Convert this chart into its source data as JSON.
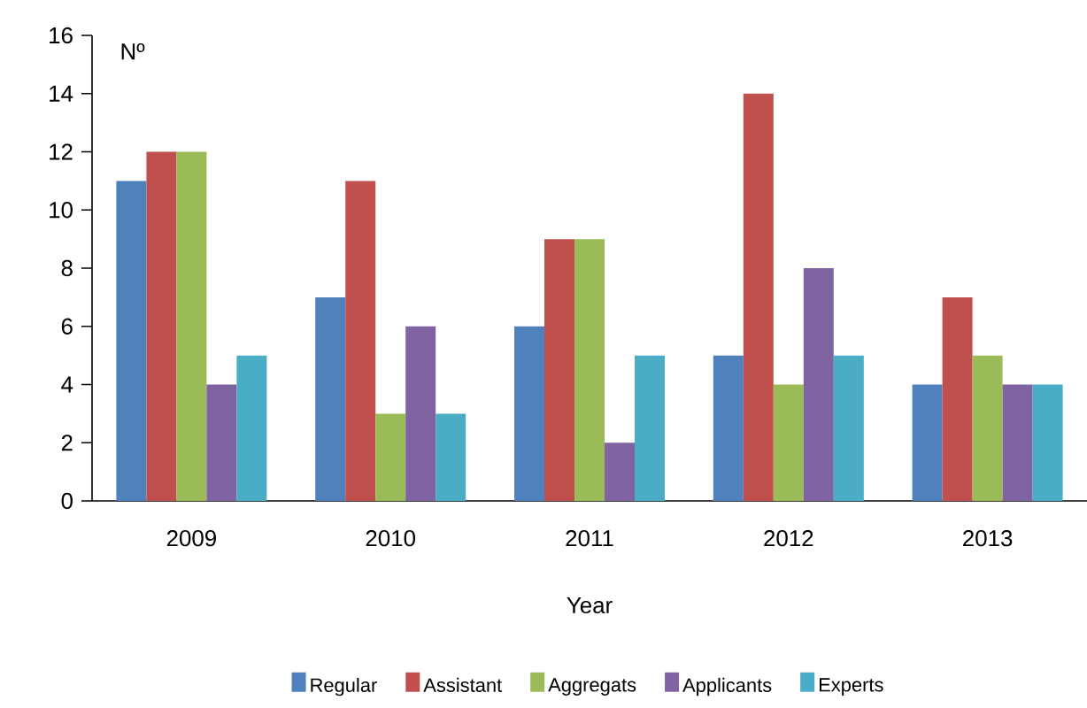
{
  "chart_data": {
    "type": "bar",
    "xlabel": "Year",
    "ylabel": "Nº",
    "categories": [
      "2009",
      "2010",
      "2011",
      "2012",
      "2013"
    ],
    "series": [
      {
        "name": "Regular",
        "color": "#4f81bd",
        "values": [
          11,
          7,
          6,
          5,
          4
        ]
      },
      {
        "name": "Assistant",
        "color": "#c0504d",
        "values": [
          12,
          11,
          9,
          14,
          7
        ]
      },
      {
        "name": "Aggregats",
        "color": "#9bbb59",
        "values": [
          12,
          3,
          9,
          4,
          5
        ]
      },
      {
        "name": "Applicants",
        "color": "#8064a2",
        "values": [
          4,
          6,
          2,
          8,
          4
        ]
      },
      {
        "name": "Experts",
        "color": "#4bacc6",
        "values": [
          5,
          3,
          5,
          5,
          4
        ]
      }
    ],
    "ylim": [
      0,
      16
    ],
    "yticks": [
      0,
      2,
      4,
      6,
      8,
      10,
      12,
      14,
      16
    ],
    "grid": false,
    "legend": "bottom"
  }
}
